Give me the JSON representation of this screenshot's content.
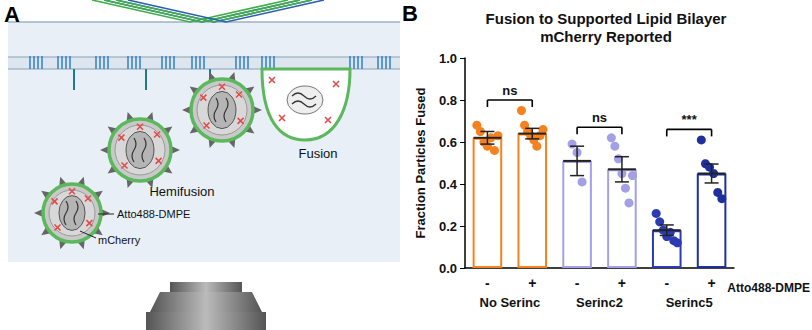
{
  "panel_labels": [
    "A",
    "B"
  ],
  "diagram": {
    "labels": {
      "hemifusion": "Hemifusion",
      "fusion": "Fusion",
      "dye": "Atto488-DMPE",
      "protein": "mCherry"
    }
  },
  "chart_data": {
    "type": "bar",
    "title": "Fusion to Supported Lipid Bilayer\nmCherry Reported",
    "y_label": "Fraction Particles Fused",
    "x_sublabel": "Atto488-DMPE",
    "categories": [
      "-",
      "+",
      "-",
      "+",
      "-",
      "+"
    ],
    "groups": [
      "No Serinc",
      "Serinc2",
      "Serinc5"
    ],
    "values": [
      0.62,
      0.64,
      0.51,
      0.47,
      0.18,
      0.45
    ],
    "errors": [
      0.03,
      0.025,
      0.07,
      0.06,
      0.025,
      0.045
    ],
    "points": [
      [
        0.68,
        0.65,
        0.6,
        0.58,
        0.62,
        0.56,
        0.63
      ],
      [
        0.75,
        0.68,
        0.65,
        0.63,
        0.61,
        0.58,
        0.63,
        0.66
      ],
      [
        0.59,
        0.55,
        0.41
      ],
      [
        0.62,
        0.58,
        0.52,
        0.45,
        0.38,
        0.31,
        0.44
      ],
      [
        0.26,
        0.22,
        0.18,
        0.15,
        0.17,
        0.13,
        0.12
      ],
      [
        0.61,
        0.5,
        0.48,
        0.45,
        0.36,
        0.33
      ]
    ],
    "colors": [
      "#f5821f",
      "#f5821f",
      "#a3a0e6",
      "#a3a0e6",
      "#2a3bb3",
      "#1f2f9e"
    ],
    "significance": [
      "ns",
      "ns",
      "***"
    ],
    "ylim": [
      0,
      1
    ],
    "yticks": [
      {
        "value": 0,
        "label": "0.0"
      },
      0.2,
      0.4,
      0.6,
      0.8,
      {
        "value": 1,
        "label": "1.0"
      }
    ],
    "grid": false
  }
}
